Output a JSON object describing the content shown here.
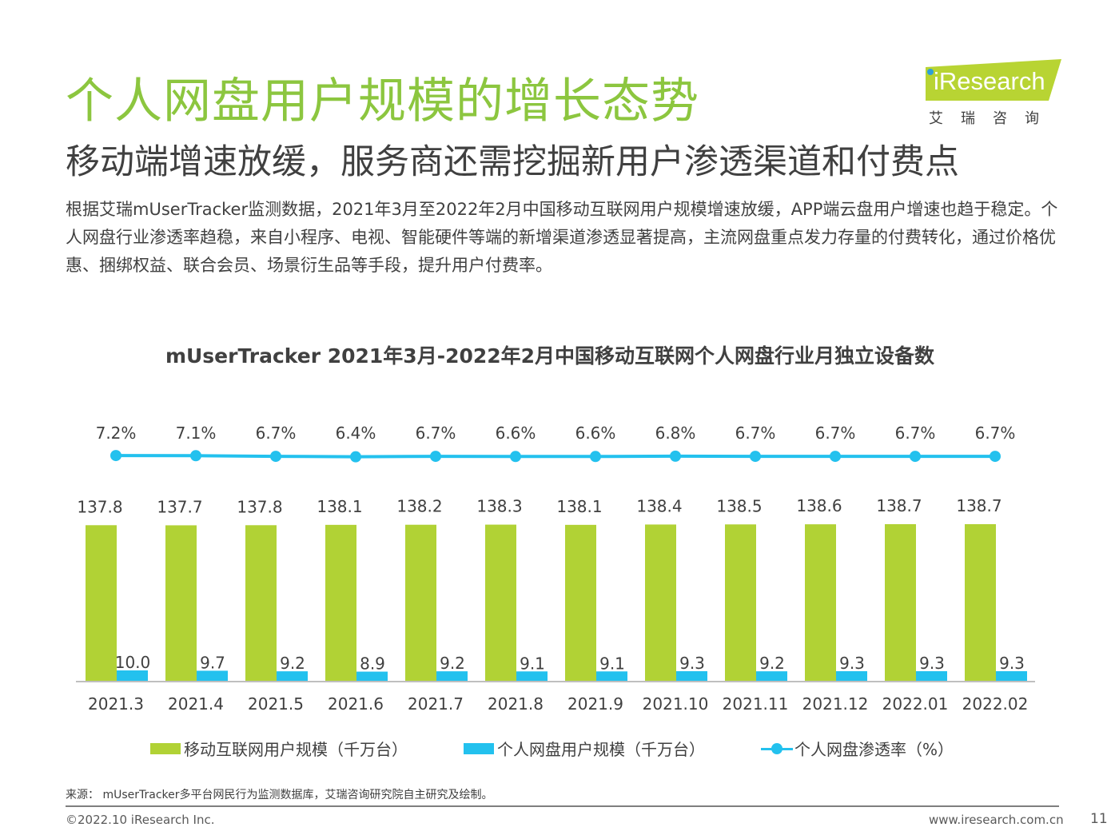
{
  "header": {
    "title": "个人网盘用户规模的增长态势",
    "subtitle": "移动端增速放缓，服务商还需挖掘新用户渗透渠道和付费点",
    "intro": "根据艾瑞mUserTracker监测数据，2021年3月至2022年2月中国移动互联网用户规模增速放缓，APP端云盘用户增速也趋于稳定。个人网盘行业渗透率趋稳，来自小程序、电视、智能硬件等端的新增渠道渗透显著提高，主流网盘重点发力存量的付费转化，通过价格优惠、捆绑权益、联合会员、场景衍生品等手段，提升用户付费率。"
  },
  "logo": {
    "text": "iResearch",
    "cn": "艾瑞咨询",
    "bg_color": "#b8d433"
  },
  "chart_data": {
    "type": "bar",
    "title": "mUserTracker 2021年3月-2022年2月中国移动互联网个人网盘行业月独立设备数",
    "categories": [
      "2021.3",
      "2021.4",
      "2021.5",
      "2021.6",
      "2021.7",
      "2021.8",
      "2021.9",
      "2021.10",
      "2021.11",
      "2021.12",
      "2022.01",
      "2022.02"
    ],
    "series": [
      {
        "name": "移动互联网用户规模（千万台）",
        "type": "bar",
        "color": "#b1d235",
        "values": [
          137.8,
          137.7,
          137.8,
          138.1,
          138.2,
          138.3,
          138.1,
          138.4,
          138.5,
          138.6,
          138.7,
          138.7
        ],
        "labels": [
          "137.8",
          "137.7",
          "137.8",
          "138.1",
          "138.2",
          "138.3",
          "138.1",
          "138.4",
          "138.5",
          "138.6",
          "138.7",
          "138.7"
        ]
      },
      {
        "name": "个人网盘用户规模（千万台）",
        "type": "bar",
        "color": "#23c1ee",
        "values": [
          10.0,
          9.7,
          9.2,
          8.9,
          9.2,
          9.1,
          9.1,
          9.3,
          9.2,
          9.3,
          9.3,
          9.3
        ],
        "labels": [
          "10.0",
          "9.7",
          "9.2",
          "8.9",
          "9.2",
          "9.1",
          "9.1",
          "9.3",
          "9.2",
          "9.3",
          "9.3",
          "9.3"
        ]
      },
      {
        "name": "个人网盘渗透率（%）",
        "type": "line",
        "color": "#23c1ee",
        "values": [
          7.2,
          7.1,
          6.7,
          6.4,
          6.7,
          6.6,
          6.6,
          6.8,
          6.7,
          6.7,
          6.7,
          6.7
        ],
        "labels": [
          "7.2%",
          "7.1%",
          "6.7%",
          "6.4%",
          "6.7%",
          "6.6%",
          "6.6%",
          "6.8%",
          "6.7%",
          "6.7%",
          "6.7%",
          "6.7%"
        ]
      }
    ],
    "legend_position": "bottom",
    "grid": false
  },
  "footer": {
    "source": "来源： mUserTracker多平台网民行为监测数据库，艾瑞咨询研究院自主研究及绘制。",
    "copyright": "©2022.10 iResearch Inc.",
    "site": "www.iresearch.com.cn",
    "page": "11"
  }
}
